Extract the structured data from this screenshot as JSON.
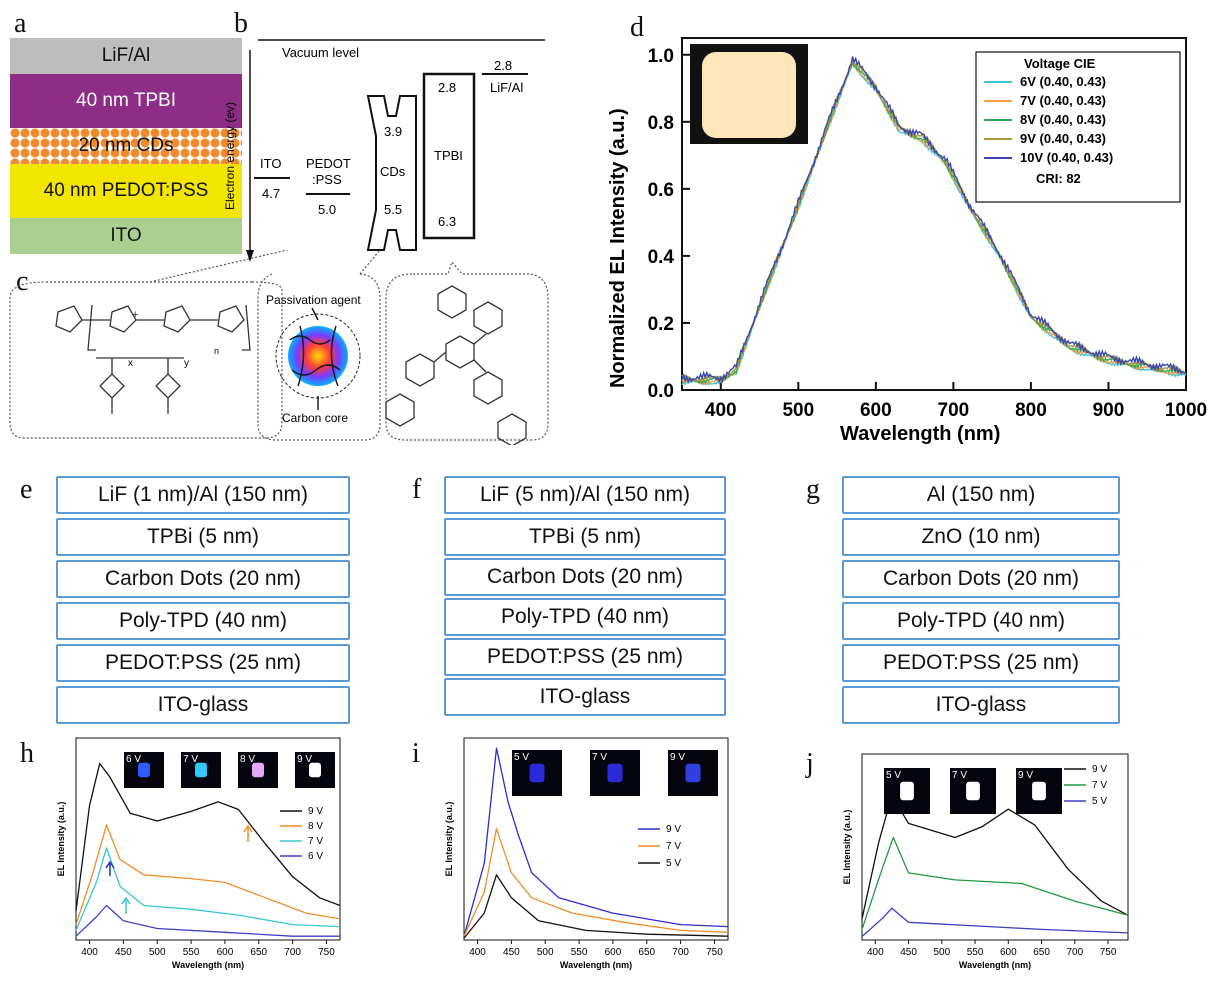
{
  "labels": {
    "a": "a",
    "b": "b",
    "c": "c",
    "d": "d",
    "e": "e",
    "f": "f",
    "g": "g",
    "h": "h",
    "i": "i",
    "j": "j"
  },
  "panel_a": {
    "layers": [
      "LiF/Al",
      "40 nm TPBI",
      "20 nm CDs",
      "40 nm PEDOT:PSS",
      "ITO"
    ],
    "colors": [
      "#bdbdbd",
      "#8e2c86",
      "#ffffff",
      "#f2e600",
      "#a9d08e"
    ]
  },
  "panel_b": {
    "ylabel": "Electron energy (ev)",
    "vacuum": "Vacuum level",
    "ito_name": "ITO",
    "ito_val": "4.7",
    "pedot_name1": "PEDOT",
    ":pss": ":PSS",
    "pedot_val": "5.0",
    "cds_top": "3.9",
    "cds_name": "CDs",
    "cds_bot": "5.5",
    "tpbi_top": "2.8",
    "tpbi_name": "TPBI",
    "tpbi_bot": "6.3",
    "lif_val": "2.8",
    "lif_name": "LiF/Al"
  },
  "panel_c": {
    "passivation": "Passivation agent",
    "core": "Carbon core",
    "sub_x": "x",
    "sub_y": "y",
    "sub_n": "n"
  },
  "chart_d": {
    "type": "line",
    "xlabel": "Wavelength (nm)",
    "ylabel": "Normalized EL Intensity (a.u.)",
    "xlim": [
      350,
      1000
    ],
    "ylim": [
      0,
      1.05
    ],
    "xticks": [
      "400",
      "500",
      "600",
      "700",
      "800",
      "900",
      "1000"
    ],
    "yticks": [
      "0.0",
      "0.2",
      "0.4",
      "0.6",
      "0.8",
      "1.0"
    ],
    "legend_title": "Voltage  CIE",
    "cri": "CRI: 82",
    "series": [
      {
        "name": "6V (0.40, 0.43)",
        "color": "#3cc3dc"
      },
      {
        "name": "7V (0.40, 0.43)",
        "color": "#f5a142"
      },
      {
        "name": "8V (0.40, 0.43)",
        "color": "#2bab5a"
      },
      {
        "name": "9V (0.40, 0.43)",
        "color": "#a89a3c"
      },
      {
        "name": "10V (0.40, 0.43)",
        "color": "#3b46b0"
      }
    ],
    "points": [
      [
        350,
        0.03
      ],
      [
        400,
        0.03
      ],
      [
        420,
        0.06
      ],
      [
        450,
        0.25
      ],
      [
        500,
        0.55
      ],
      [
        540,
        0.8
      ],
      [
        570,
        0.98
      ],
      [
        600,
        0.9
      ],
      [
        630,
        0.78
      ],
      [
        660,
        0.75
      ],
      [
        690,
        0.68
      ],
      [
        720,
        0.55
      ],
      [
        760,
        0.4
      ],
      [
        800,
        0.22
      ],
      [
        850,
        0.13
      ],
      [
        900,
        0.09
      ],
      [
        950,
        0.07
      ],
      [
        1000,
        0.05
      ]
    ]
  },
  "stack_e": [
    "LiF (1 nm)/Al (150 nm)",
    "TPBi (5 nm)",
    "Carbon Dots (20 nm)",
    "Poly-TPD (40 nm)",
    "PEDOT:PSS (25 nm)",
    "ITO-glass"
  ],
  "stack_f": [
    "LiF (5 nm)/Al (150 nm)",
    "TPBi (5 nm)",
    "Carbon Dots (20 nm)",
    "Poly-TPD (40 nm)",
    "PEDOT:PSS (25 nm)",
    "ITO-glass"
  ],
  "stack_g": [
    "Al (150 nm)",
    "ZnO (10 nm)",
    "Carbon Dots (20 nm)",
    "Poly-TPD (40 nm)",
    "PEDOT:PSS (25 nm)",
    "ITO-glass"
  ],
  "chart_h": {
    "type": "line",
    "xlabel": "Wavelength (nm)",
    "ylabel": "EL Intensity (a.u.)",
    "xticks": [
      "400",
      "450",
      "500",
      "550",
      "600",
      "650",
      "700",
      "750"
    ],
    "insets": [
      "6 V",
      "7 V",
      "8 V",
      "9 V"
    ],
    "series": [
      {
        "name": "9 V",
        "color": "#111111",
        "points": [
          [
            380,
            0.15
          ],
          [
            400,
            0.7
          ],
          [
            415,
            0.92
          ],
          [
            430,
            0.85
          ],
          [
            460,
            0.66
          ],
          [
            500,
            0.62
          ],
          [
            550,
            0.67
          ],
          [
            590,
            0.72
          ],
          [
            620,
            0.68
          ],
          [
            660,
            0.5
          ],
          [
            700,
            0.33
          ],
          [
            740,
            0.22
          ],
          [
            770,
            0.18
          ]
        ]
      },
      {
        "name": "8 V",
        "color": "#f08c28",
        "points": [
          [
            380,
            0.08
          ],
          [
            405,
            0.35
          ],
          [
            425,
            0.6
          ],
          [
            445,
            0.42
          ],
          [
            480,
            0.34
          ],
          [
            550,
            0.32
          ],
          [
            600,
            0.3
          ],
          [
            660,
            0.22
          ],
          [
            720,
            0.14
          ],
          [
            770,
            0.11
          ]
        ]
      },
      {
        "name": "7 V",
        "color": "#36c7d6",
        "points": [
          [
            380,
            0.05
          ],
          [
            410,
            0.3
          ],
          [
            425,
            0.48
          ],
          [
            445,
            0.28
          ],
          [
            480,
            0.18
          ],
          [
            550,
            0.16
          ],
          [
            620,
            0.13
          ],
          [
            700,
            0.08
          ],
          [
            770,
            0.07
          ]
        ]
      },
      {
        "name": "6 V",
        "color": "#3e3ec8",
        "points": [
          [
            380,
            0.02
          ],
          [
            410,
            0.12
          ],
          [
            425,
            0.18
          ],
          [
            450,
            0.1
          ],
          [
            500,
            0.06
          ],
          [
            600,
            0.04
          ],
          [
            700,
            0.02
          ],
          [
            770,
            0.02
          ]
        ]
      }
    ]
  },
  "chart_i": {
    "type": "line",
    "xlabel": "Wavelength (nm)",
    "ylabel": "EL Intensity (a.u.)",
    "xticks": [
      "400",
      "450",
      "500",
      "550",
      "600",
      "650",
      "700",
      "750"
    ],
    "insets": [
      "5 V",
      "7 V",
      "9 V"
    ],
    "series": [
      {
        "name": "9 V",
        "color": "#2d2dd2",
        "points": [
          [
            380,
            0.02
          ],
          [
            410,
            0.4
          ],
          [
            428,
            1.0
          ],
          [
            445,
            0.72
          ],
          [
            460,
            0.55
          ],
          [
            480,
            0.35
          ],
          [
            520,
            0.22
          ],
          [
            600,
            0.14
          ],
          [
            700,
            0.08
          ],
          [
            770,
            0.07
          ]
        ]
      },
      {
        "name": "7 V",
        "color": "#f08c28",
        "points": [
          [
            380,
            0.02
          ],
          [
            410,
            0.25
          ],
          [
            428,
            0.58
          ],
          [
            450,
            0.35
          ],
          [
            480,
            0.22
          ],
          [
            540,
            0.14
          ],
          [
            620,
            0.09
          ],
          [
            700,
            0.05
          ],
          [
            770,
            0.04
          ]
        ]
      },
      {
        "name": "5 V",
        "color": "#111111",
        "points": [
          [
            380,
            0.01
          ],
          [
            410,
            0.14
          ],
          [
            428,
            0.34
          ],
          [
            450,
            0.22
          ],
          [
            490,
            0.1
          ],
          [
            560,
            0.05
          ],
          [
            650,
            0.03
          ],
          [
            770,
            0.02
          ]
        ]
      }
    ]
  },
  "chart_j": {
    "type": "line",
    "xlabel": "Wavelength (nm)",
    "ylabel": "EL Intensity (a.u.)",
    "xticks": [
      "400",
      "450",
      "500",
      "550",
      "600",
      "650",
      "700",
      "750"
    ],
    "insets": [
      "5 V",
      "7 V",
      "9 V"
    ],
    "series": [
      {
        "name": "9 V",
        "color": "#111111",
        "points": [
          [
            380,
            0.12
          ],
          [
            405,
            0.55
          ],
          [
            425,
            0.82
          ],
          [
            450,
            0.66
          ],
          [
            520,
            0.58
          ],
          [
            560,
            0.64
          ],
          [
            600,
            0.74
          ],
          [
            640,
            0.65
          ],
          [
            690,
            0.4
          ],
          [
            740,
            0.22
          ],
          [
            780,
            0.14
          ]
        ]
      },
      {
        "name": "7 V",
        "color": "#1e9c3c",
        "points": [
          [
            380,
            0.06
          ],
          [
            410,
            0.4
          ],
          [
            427,
            0.58
          ],
          [
            450,
            0.38
          ],
          [
            520,
            0.34
          ],
          [
            620,
            0.32
          ],
          [
            700,
            0.22
          ],
          [
            780,
            0.14
          ]
        ]
      },
      {
        "name": "5 V",
        "color": "#3c3cc3",
        "points": [
          [
            380,
            0.02
          ],
          [
            410,
            0.12
          ],
          [
            425,
            0.18
          ],
          [
            450,
            0.1
          ],
          [
            550,
            0.08
          ],
          [
            650,
            0.06
          ],
          [
            780,
            0.04
          ]
        ]
      }
    ]
  }
}
